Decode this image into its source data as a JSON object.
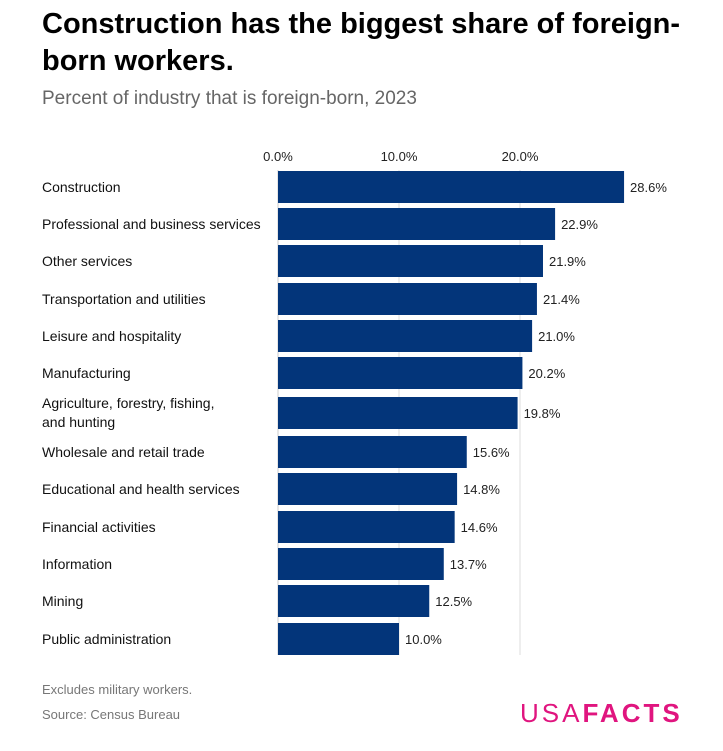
{
  "title": "Construction has the biggest share of foreign-born workers.",
  "subtitle": "Percent of industry that is foreign-born, 2023",
  "notes": {
    "note": "Excludes military workers.",
    "source": "Source: Census Bureau"
  },
  "logo": {
    "light": "USA",
    "bold": "FACTS",
    "color": "#e0157f"
  },
  "chart_data": {
    "type": "bar",
    "orientation": "horizontal",
    "title": "Construction has the biggest share of foreign-born workers.",
    "subtitle": "Percent of industry that is foreign-born, 2023",
    "categories": [
      "Construction",
      "Professional and business services",
      "Other services",
      "Transportation and utilities",
      "Leisure and hospitality",
      "Manufacturing",
      "Agriculture, forestry, fishing, and hunting",
      "Wholesale and retail trade",
      "Educational and health services",
      "Financial activities",
      "Information",
      "Mining",
      "Public administration"
    ],
    "values": [
      28.6,
      22.9,
      21.9,
      21.4,
      21.0,
      20.2,
      19.8,
      15.6,
      14.8,
      14.6,
      13.7,
      12.5,
      10.0
    ],
    "data_labels": [
      "28.6%",
      "22.9%",
      "21.9%",
      "21.4%",
      "21.0%",
      "20.2%",
      "19.8%",
      "15.6%",
      "14.8%",
      "14.6%",
      "13.7%",
      "12.5%",
      "10.0%"
    ],
    "x_ticks": [
      0,
      10,
      20
    ],
    "x_tick_labels": [
      "0.0%",
      "10.0%",
      "20.0%"
    ],
    "xlim": [
      0,
      30
    ],
    "axis_position": "top",
    "grid": true,
    "bar_color": "#03357a"
  }
}
